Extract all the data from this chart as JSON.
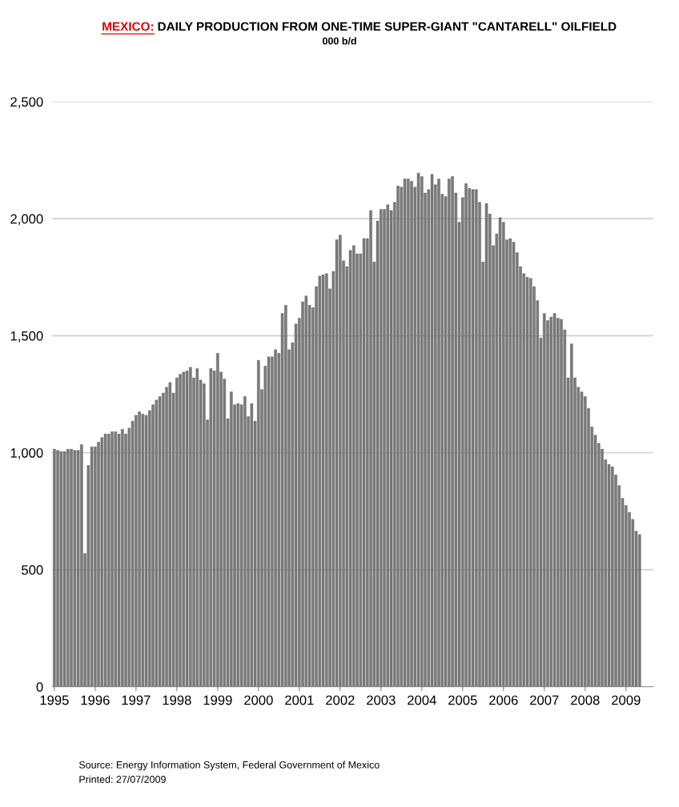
{
  "chart_data": {
    "type": "bar",
    "title": "MEXICO: DAILY PRODUCTION FROM ONE-TIME SUPER-GIANT \"CANTARELL\" OILFIELD",
    "subtitle": "000 b/d",
    "categories": [
      "1995",
      null,
      null,
      null,
      null,
      null,
      null,
      null,
      null,
      null,
      null,
      null,
      "1996",
      null,
      null,
      null,
      null,
      null,
      null,
      null,
      null,
      null,
      null,
      null,
      "1997",
      null,
      null,
      null,
      null,
      null,
      null,
      null,
      null,
      null,
      null,
      null,
      "1998",
      null,
      null,
      null,
      null,
      null,
      null,
      null,
      null,
      null,
      null,
      null,
      "1999",
      null,
      null,
      null,
      null,
      null,
      null,
      null,
      null,
      null,
      null,
      null,
      "2000",
      null,
      null,
      null,
      null,
      null,
      null,
      null,
      null,
      null,
      null,
      null,
      "2001",
      null,
      null,
      null,
      null,
      null,
      null,
      null,
      null,
      null,
      null,
      null,
      "2002",
      null,
      null,
      null,
      null,
      null,
      null,
      null,
      null,
      null,
      null,
      null,
      "2003",
      null,
      null,
      null,
      null,
      null,
      null,
      null,
      null,
      null,
      null,
      null,
      "2004",
      null,
      null,
      null,
      null,
      null,
      null,
      null,
      null,
      null,
      null,
      null,
      "2005",
      null,
      null,
      null,
      null,
      null,
      null,
      null,
      null,
      null,
      null,
      null,
      "2006",
      null,
      null,
      null,
      null,
      null,
      null,
      null,
      null,
      null,
      null,
      null,
      "2007",
      null,
      null,
      null,
      null,
      null,
      null,
      null,
      null,
      null,
      null,
      null,
      "2008",
      null,
      null,
      null,
      null,
      null,
      null,
      null,
      null,
      null,
      null,
      null,
      "2009",
      null,
      null,
      null,
      null
    ],
    "values": [
      1015,
      1010,
      1005,
      1005,
      1015,
      1015,
      1010,
      1010,
      1035,
      570,
      945,
      1025,
      1025,
      1045,
      1065,
      1080,
      1080,
      1090,
      1090,
      1080,
      1100,
      1080,
      1105,
      1135,
      1160,
      1175,
      1165,
      1160,
      1180,
      1205,
      1225,
      1240,
      1255,
      1280,
      1300,
      1255,
      1320,
      1335,
      1345,
      1350,
      1365,
      1320,
      1360,
      1310,
      1295,
      1140,
      1360,
      1350,
      1425,
      1345,
      1315,
      1145,
      1260,
      1205,
      1210,
      1205,
      1240,
      1155,
      1210,
      1135,
      1395,
      1270,
      1370,
      1410,
      1410,
      1440,
      1425,
      1595,
      1630,
      1440,
      1470,
      1550,
      1575,
      1645,
      1670,
      1630,
      1620,
      1710,
      1755,
      1760,
      1765,
      1700,
      1775,
      1910,
      1930,
      1820,
      1795,
      1865,
      1885,
      1850,
      1850,
      1915,
      1915,
      2035,
      1815,
      1990,
      2040,
      2040,
      2060,
      2035,
      2070,
      2140,
      2135,
      2170,
      2170,
      2160,
      2135,
      2195,
      2180,
      2110,
      2125,
      2190,
      2145,
      2170,
      2105,
      2095,
      2170,
      2180,
      2110,
      1985,
      2090,
      2150,
      2130,
      2125,
      2125,
      2070,
      1815,
      2065,
      2020,
      1885,
      1935,
      2005,
      1985,
      1910,
      1915,
      1900,
      1855,
      1795,
      1765,
      1750,
      1745,
      1710,
      1650,
      1490,
      1595,
      1565,
      1580,
      1595,
      1575,
      1570,
      1525,
      1320,
      1465,
      1320,
      1280,
      1260,
      1240,
      1190,
      1110,
      1075,
      1040,
      1015,
      970,
      950,
      940,
      905,
      860,
      805,
      775,
      745,
      715,
      665,
      650
    ],
    "color": "#7b7b7b",
    "ylim": [
      0,
      2500
    ],
    "yticks": [
      0,
      500,
      {
        "value": 1000,
        "label": "1,000"
      },
      {
        "value": 1500,
        "label": "1,500"
      },
      {
        "value": 2000,
        "label": "2,000"
      },
      {
        "value": 2500,
        "label": "2,500"
      }
    ],
    "grid": "y",
    "legend": false,
    "annotations": [
      "Source: Energy Information System, Federal Government of Mexico",
      "Printed: 27/07/2009"
    ]
  }
}
